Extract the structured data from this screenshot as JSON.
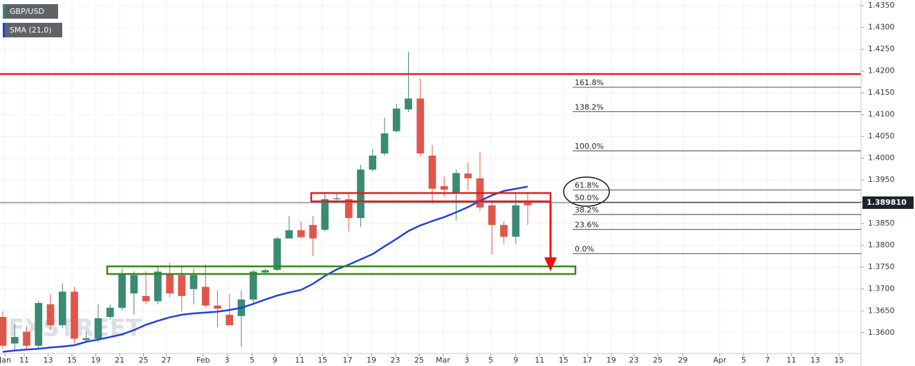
{
  "chart_data": {
    "type": "candlestick",
    "watermark": "FXSTREET",
    "categories": [
      null,
      null,
      null,
      null,
      null,
      null,
      null,
      null,
      null,
      null,
      null,
      null,
      null,
      null,
      null,
      null,
      null,
      null,
      null,
      null,
      null,
      null,
      null,
      null,
      null,
      null,
      null,
      null,
      null,
      null,
      null,
      null,
      null,
      null,
      null,
      null,
      null,
      null,
      null,
      null,
      null,
      null,
      null,
      null,
      null
    ],
    "series": [
      {
        "name": "GBP/USD",
        "up_color": "#3b8a73",
        "down_color": "#e0564b",
        "open": [
          1.3636,
          1.3575,
          1.3602,
          1.357,
          1.3665,
          1.3617,
          1.3694,
          1.3583,
          1.3586,
          1.3636,
          1.3657,
          1.369,
          1.3684,
          1.3672,
          1.3736,
          1.3732,
          1.37,
          1.3705,
          1.3662,
          1.3641,
          1.3638,
          1.3676,
          1.3738,
          1.3744,
          1.3816,
          1.3835,
          1.3847,
          1.3836,
          1.3906,
          1.3906,
          1.3863,
          1.3974,
          1.4011,
          1.4062,
          1.4112,
          1.4137,
          1.4006,
          1.3936,
          1.392,
          1.3965,
          1.3954,
          1.3892,
          1.3847,
          1.382,
          1.39
        ],
        "high": [
          1.3649,
          1.362,
          1.3615,
          1.3673,
          1.3689,
          1.3713,
          1.3705,
          1.3602,
          1.3665,
          1.3665,
          1.3747,
          1.3741,
          1.3741,
          1.3752,
          1.376,
          1.3752,
          1.3747,
          1.3757,
          1.3697,
          1.3689,
          1.3697,
          1.3744,
          1.3747,
          1.382,
          1.3868,
          1.3855,
          1.3868,
          1.3922,
          1.3919,
          1.3919,
          1.3985,
          1.4022,
          1.4093,
          1.4125,
          1.4244,
          1.4183,
          1.403,
          1.3958,
          1.3974,
          1.399,
          1.4015,
          1.3903,
          1.3855,
          1.3922,
          1.3922
        ],
        "low": [
          1.3562,
          1.356,
          1.356,
          1.3562,
          1.3605,
          1.361,
          1.3575,
          1.3579,
          1.3578,
          1.363,
          1.3652,
          1.3641,
          1.3665,
          1.3665,
          1.3681,
          1.3649,
          1.3665,
          1.3657,
          1.3613,
          1.3617,
          1.3567,
          1.3665,
          1.3735,
          1.3741,
          1.3816,
          1.3816,
          1.3776,
          1.3832,
          1.39,
          1.3832,
          1.3843,
          1.3969,
          1.4006,
          1.4059,
          1.4106,
          1.4004,
          1.3895,
          1.3911,
          1.3857,
          1.3927,
          1.3879,
          1.3779,
          1.3804,
          1.3804,
          1.3847
        ],
        "close": [
          1.357,
          1.359,
          1.357,
          1.3668,
          1.3617,
          1.3694,
          1.3586,
          1.3587,
          1.3633,
          1.3657,
          1.3736,
          1.3732,
          1.3672,
          1.374,
          1.369,
          1.3684,
          1.3732,
          1.3662,
          1.3655,
          1.3617,
          1.3676,
          1.374,
          1.3743,
          1.3816,
          1.3835,
          1.3819,
          1.3816,
          1.3906,
          1.3908,
          1.3863,
          1.3974,
          1.4006,
          1.4057,
          1.4114,
          1.4137,
          1.4011,
          1.393,
          1.3928,
          1.3966,
          1.3954,
          1.3887,
          1.3847,
          1.382,
          1.3892,
          1.3892
        ]
      },
      {
        "name": "SMA (21,0)",
        "color": "#1e3ee6",
        "values": [
          1.3556,
          1.3559,
          1.3561,
          1.3563,
          1.3566,
          1.3568,
          1.3571,
          1.3579,
          1.3584,
          1.359,
          1.3596,
          1.3606,
          1.3618,
          1.3627,
          1.3635,
          1.3641,
          1.3644,
          1.3646,
          1.3648,
          1.3652,
          1.3657,
          1.3666,
          1.3676,
          1.3685,
          1.3692,
          1.3698,
          1.3712,
          1.373,
          1.3745,
          1.3756,
          1.3768,
          1.378,
          1.3798,
          1.3815,
          1.3833,
          1.3846,
          1.3856,
          1.3865,
          1.3876,
          1.3888,
          1.3902,
          1.3915,
          1.3925,
          1.393,
          1.3935
        ]
      }
    ],
    "fibonacci": [
      {
        "label": "161.8%",
        "price": 1.4163
      },
      {
        "label": "138.2%",
        "price": 1.4107
      },
      {
        "label": "100.0%",
        "price": 1.4017
      },
      {
        "label": "61.8%",
        "price": 1.3927
      },
      {
        "label": "50.0%",
        "price": 1.3899
      },
      {
        "label": "38.2%",
        "price": 1.3871
      },
      {
        "label": "23.6%",
        "price": 1.3837
      },
      {
        "label": "0.0%",
        "price": 1.3781
      }
    ],
    "last_price": {
      "value": 1.38981,
      "label": "1.389810"
    },
    "xlim": [
      -0.232,
      71.94
    ],
    "xticks": [
      {
        "value": 0.2,
        "label": "Jan"
      },
      {
        "value": 1.8,
        "label": "11"
      },
      {
        "value": 3.8,
        "label": "13"
      },
      {
        "value": 5.8,
        "label": "15"
      },
      {
        "value": 7.8,
        "label": "19"
      },
      {
        "value": 9.8,
        "label": "21"
      },
      {
        "value": 11.8,
        "label": "25"
      },
      {
        "value": 13.7,
        "label": "27"
      },
      {
        "value": 16.8,
        "label": "Feb"
      },
      {
        "value": 18.8,
        "label": "3"
      },
      {
        "value": 20.9,
        "label": "5"
      },
      {
        "value": 22.8,
        "label": "9"
      },
      {
        "value": 24.9,
        "label": "11"
      },
      {
        "value": 26.8,
        "label": "15"
      },
      {
        "value": 28.9,
        "label": "17"
      },
      {
        "value": 30.9,
        "label": "19"
      },
      {
        "value": 32.9,
        "label": "23"
      },
      {
        "value": 34.9,
        "label": "25"
      },
      {
        "value": 36.9,
        "label": "Mar"
      },
      {
        "value": 38.9,
        "label": "3"
      },
      {
        "value": 40.9,
        "label": "5"
      },
      {
        "value": 43.0,
        "label": "9"
      },
      {
        "value": 45.0,
        "label": "11"
      },
      {
        "value": 47.0,
        "label": "15"
      },
      {
        "value": 49.0,
        "label": "17"
      },
      {
        "value": 51.0,
        "label": "19"
      },
      {
        "value": 52.9,
        "label": "23"
      },
      {
        "value": 54.9,
        "label": "25"
      },
      {
        "value": 57.0,
        "label": "29"
      },
      {
        "value": 60.1,
        "label": "Apr"
      },
      {
        "value": 62.1,
        "label": "5"
      },
      {
        "value": 64.1,
        "label": "7"
      },
      {
        "value": 66.1,
        "label": "11"
      },
      {
        "value": 68.1,
        "label": "13"
      },
      {
        "value": 70.1,
        "label": "15"
      }
    ],
    "ylim": [
      1.3552,
      1.4363
    ],
    "yticks": [
      {
        "value": 1.36,
        "label": "1.3600"
      },
      {
        "value": 1.365,
        "label": "1.3650"
      },
      {
        "value": 1.37,
        "label": "1.3700"
      },
      {
        "value": 1.375,
        "label": "1.3750"
      },
      {
        "value": 1.38,
        "label": "1.3800"
      },
      {
        "value": 1.385,
        "label": "1.3850"
      },
      {
        "value": 1.39,
        "label": "1.3900"
      },
      {
        "value": 1.395,
        "label": "1.3950"
      },
      {
        "value": 1.4,
        "label": "1.4000"
      },
      {
        "value": 1.405,
        "label": "1.4050"
      },
      {
        "value": 1.41,
        "label": "1.4100"
      },
      {
        "value": 1.415,
        "label": "1.4150"
      },
      {
        "value": 1.42,
        "label": "1.4200"
      },
      {
        "value": 1.425,
        "label": "1.4250"
      },
      {
        "value": 1.43,
        "label": "1.4300"
      },
      {
        "value": 1.435,
        "label": "1.4350"
      }
    ],
    "grid": true
  }
}
